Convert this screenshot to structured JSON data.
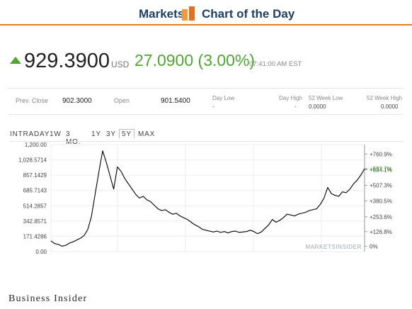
{
  "header": {
    "markets": "Markets",
    "title": "Chart of the Day",
    "logo_colors": [
      "#f59a3a",
      "#e36f1f"
    ],
    "accent": "#e57b2c"
  },
  "quote": {
    "direction_icon": "up-arrow-icon",
    "price": "929.3900",
    "currency": "USD",
    "change": "27.0900 (3.00%)",
    "time": "07:41:00 AM EST",
    "up_color": "#4fa534"
  },
  "stats": {
    "prev_close_label": "Prev. Close",
    "prev_close": "902.3000",
    "open_label": "Open",
    "open": "901.5400",
    "day_low_label": "Day Low",
    "day_low": "-",
    "day_high_label": "Day High",
    "day_high": "-",
    "wk52_low_label": "52 Week Low",
    "wk52_low": "0.0000",
    "wk52_high_label": "52 Week High",
    "wk52_high": "0.0000"
  },
  "tabs": [
    {
      "label": "INTRADAY",
      "active": false
    },
    {
      "label": "1W",
      "active": false
    },
    {
      "label": "3 MO.",
      "active": false
    },
    {
      "label": "1Y",
      "active": false
    },
    {
      "label": "3Y",
      "active": false
    },
    {
      "label": "5Y",
      "active": true
    },
    {
      "label": "MAX",
      "active": false
    }
  ],
  "chart_data": {
    "type": "line",
    "title": "",
    "xlabel": "",
    "ylabel": "",
    "ylim": [
      0,
      1200
    ],
    "left_ticks": [
      "1,200.00",
      "1,028.5714",
      "857.1429",
      "685.7143",
      "514.2857",
      "342.8571",
      "171.4286",
      "0.00"
    ],
    "left_tick_values": [
      1200,
      1028.5714,
      857.1429,
      685.7143,
      514.2857,
      342.8571,
      171.4286,
      0
    ],
    "right_ticks": [
      "+760.9%",
      "+634.1%",
      "+507.3%",
      "+380.5%",
      "+253.6%",
      "+126.8%",
      "0%"
    ],
    "right_tick_values": [
      1094.6,
      918.5,
      742.5,
      566.4,
      390.4,
      224.3,
      59
    ],
    "current_label": "+582.7%",
    "current_color": "#4fa534",
    "grid": true,
    "line_color": "#000000",
    "watermark": "MARKETSINSIDER",
    "series": [
      {
        "values": [
          120,
          90,
          80,
          60,
          70,
          95,
          110,
          130,
          150,
          180,
          250,
          400,
          650,
          900,
          1130,
          1000,
          850,
          700,
          950,
          900,
          820,
          760,
          700,
          640,
          600,
          620,
          580,
          560,
          520,
          480,
          460,
          470,
          440,
          420,
          430,
          400,
          380,
          360,
          330,
          300,
          280,
          250,
          240,
          230,
          220,
          230,
          215,
          225,
          210,
          225,
          230,
          215,
          220,
          225,
          240,
          225,
          200,
          220,
          260,
          300,
          360,
          330,
          350,
          380,
          420,
          410,
          400,
          420,
          430,
          440,
          460,
          470,
          480,
          530,
          600,
          720,
          650,
          630,
          620,
          670,
          660,
          700,
          760,
          800,
          860,
          929.39
        ]
      }
    ]
  },
  "footer": "Business Insider"
}
